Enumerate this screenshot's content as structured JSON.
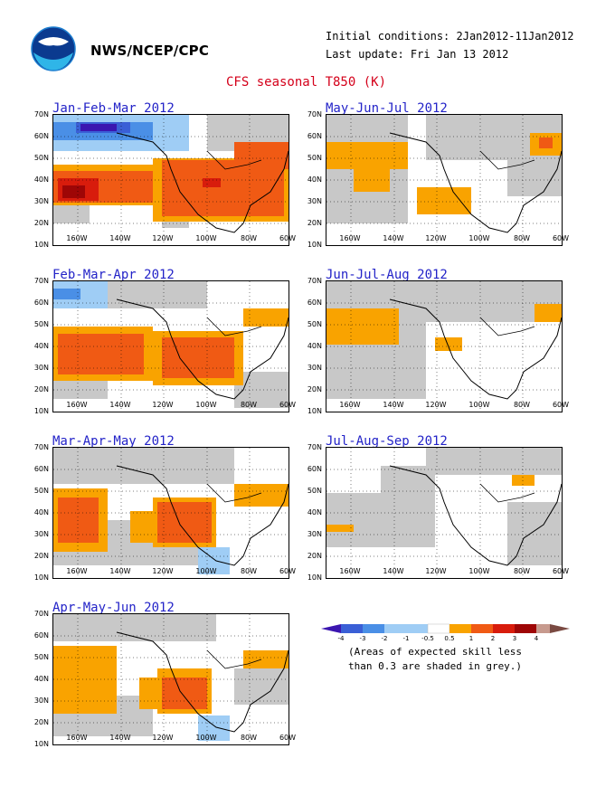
{
  "header": {
    "logo_icon": "noaa-logo",
    "agency": "NWS/NCEP/CPC",
    "initial_conditions": "Initial conditions: 2Jan2012-11Jan2012",
    "last_update": "Last update: Fri Jan 13 2012",
    "title": "CFS seasonal T850 (K)"
  },
  "axes": {
    "lat_labels": [
      "70N",
      "60N",
      "50N",
      "40N",
      "30N",
      "20N",
      "10N"
    ],
    "lon_labels": [
      "160W",
      "140W",
      "120W",
      "100W",
      "80W",
      "60W"
    ]
  },
  "panels": [
    {
      "title": "Jan-Feb-Mar 2012"
    },
    {
      "title": "May-Jun-Jul 2012"
    },
    {
      "title": "Feb-Mar-Apr 2012"
    },
    {
      "title": "Jun-Jul-Aug 2012"
    },
    {
      "title": "Mar-Apr-May 2012"
    },
    {
      "title": "Jul-Aug-Sep 2012"
    },
    {
      "title": "Apr-May-Jun 2012"
    }
  ],
  "legend": {
    "ticks": [
      "-4",
      "-3",
      "-2",
      "-1",
      "-0.5",
      "0.5",
      "1",
      "2",
      "3",
      "4"
    ],
    "colors": [
      "#3b16b0",
      "#3a5fd6",
      "#4a8fe6",
      "#9fcdf5",
      "#ffffff",
      "#f9a300",
      "#f05a14",
      "#d81c0c",
      "#9e0606",
      "#c79a8e",
      "#7a4a42"
    ],
    "note_line1": "(Areas of expected skill less",
    "note_line2": "than 0.3 are shaded in grey.)"
  },
  "colors": {
    "skill_grey": "#c8c8c8",
    "orange": "#f9a300",
    "red_orange": "#f05a14",
    "red": "#d81c0c",
    "dark_red": "#9e0606",
    "light_blue": "#9fcdf5",
    "mid_blue": "#4a8fe6",
    "dark_blue": "#3a5fd6",
    "deep_blue": "#3b16b0"
  }
}
